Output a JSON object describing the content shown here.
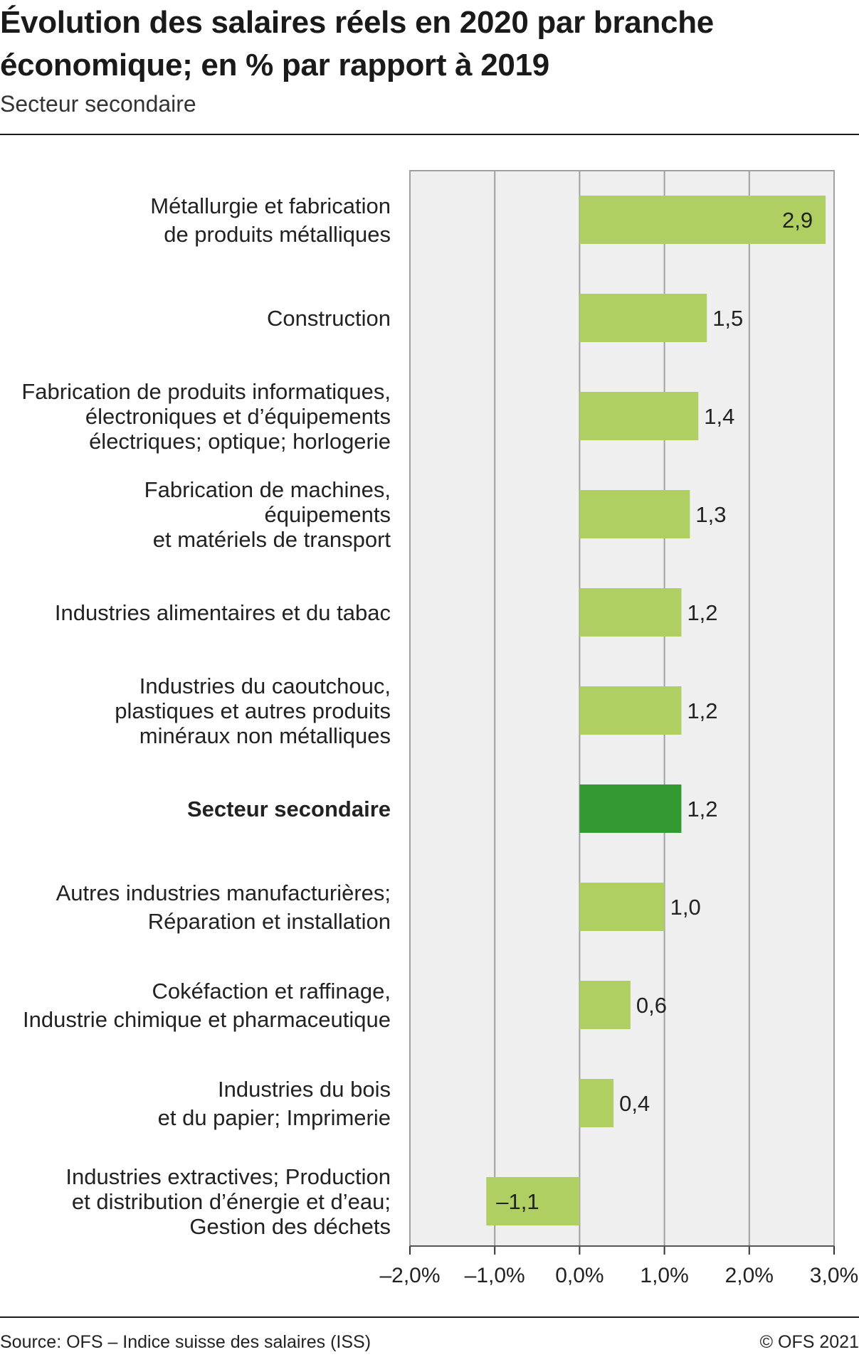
{
  "title": "Évolution des salaires réels en 2020 par branche économique; en % par rapport à 2019",
  "subtitle": "Secteur secondaire",
  "source": "Source: OFS – Indice suisse des salaires (ISS)",
  "copyright": "© OFS 2021",
  "colors": {
    "bar": "#afcf63",
    "highlight": "#339933",
    "plot_bg": "#efefef",
    "grid": "#a0a0a0"
  },
  "chart_data": {
    "type": "bar",
    "orientation": "horizontal",
    "categories": [
      [
        "Métallurgie et fabrication",
        "de produits métalliques"
      ],
      [
        "Construction"
      ],
      [
        "Fabrication de produits informatiques,",
        "électroniques et d’équipements",
        "électriques; optique; horlogerie"
      ],
      [
        "Fabrication de machines,",
        "équipements",
        "et matériels de transport"
      ],
      [
        "Industries alimentaires et du tabac"
      ],
      [
        "Industries du caoutchouc,",
        "plastiques et autres produits",
        "minéraux non métalliques"
      ],
      [
        "Secteur secondaire"
      ],
      [
        "Autres industries manufacturières;",
        "Réparation et installation"
      ],
      [
        "Cokéfaction et raffinage,",
        "Industrie chimique et pharmaceutique"
      ],
      [
        "Industries du bois",
        "et du papier; Imprimerie"
      ],
      [
        "Industries extractives; Production",
        "et distribution d’énergie et d’eau;",
        "Gestion des déchets"
      ]
    ],
    "values": [
      2.9,
      1.5,
      1.4,
      1.3,
      1.2,
      1.2,
      1.2,
      1.0,
      0.6,
      0.4,
      -1.1
    ],
    "value_labels": [
      "2,9",
      "1,5",
      "1,4",
      "1,3",
      "1,2",
      "1,2",
      "1,2",
      "1,0",
      "0,6",
      "0,4",
      "–1,1"
    ],
    "highlight_index": 6,
    "xlim": [
      -2.0,
      3.0
    ],
    "xticks": [
      -2,
      -1,
      0,
      1,
      2,
      3
    ],
    "xtick_labels": [
      "–2,0%",
      "–1,0%",
      "0,0%",
      "1,0%",
      "2,0%",
      "3,0%"
    ],
    "grid": true
  }
}
